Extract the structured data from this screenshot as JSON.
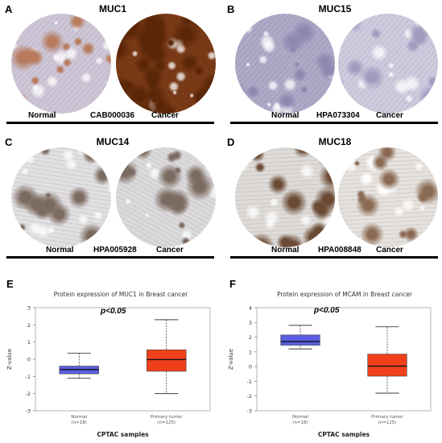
{
  "panels": [
    {
      "letter": "A",
      "title": "MUC1",
      "normal": "Normal",
      "antibody": "CAB000036",
      "cancer": "Cancer",
      "normal_core": {
        "base": "#cfc7d8",
        "stain": "#b77a5c",
        "stain_level": 0.15
      },
      "cancer_core": {
        "base": "#7a3a16",
        "stain": "#5a2608",
        "stain_level": 0.95
      }
    },
    {
      "letter": "B",
      "title": "MUC15",
      "normal": "Normal",
      "antibody": "HPA073304",
      "cancer": "Cancer",
      "normal_core": {
        "base": "#aeaac8",
        "stain": "#8c88b0",
        "stain_level": 0.05
      },
      "cancer_core": {
        "base": "#cfcce0",
        "stain": "#9f9cc0",
        "stain_level": 0.05
      }
    },
    {
      "letter": "C",
      "title": "MUC14",
      "normal": "Normal",
      "antibody": "HPA005928",
      "cancer": "Cancer",
      "normal_core": {
        "base": "#e2e0e2",
        "stain": "#7b6a60",
        "stain_level": 0.15
      },
      "cancer_core": {
        "base": "#dcdadd",
        "stain": "#7b6a60",
        "stain_level": 0.12
      }
    },
    {
      "letter": "D",
      "title": "MUC18",
      "normal": "Normal",
      "antibody": "HPA008848",
      "cancer": "Cancer",
      "normal_core": {
        "base": "#dedbd8",
        "stain": "#6b4a34",
        "stain_level": 0.2
      },
      "cancer_core": {
        "base": "#e6e2de",
        "stain": "#8a6a52",
        "stain_level": 0.1
      }
    }
  ],
  "charts": [
    {
      "letter": "E",
      "title": "Protein expression of MUC1 in Breast cancer",
      "pvalue": "p<0.05",
      "xlabel": "CPTAC samples",
      "ylabel": "Z-value"
    },
    {
      "letter": "F",
      "title": "Protein expression of MCAM in Breast cancer",
      "pvalue": "p<0.05",
      "xlabel": "CPTAC samples",
      "ylabel": "Z-value"
    }
  ],
  "chart_data": [
    {
      "type": "box",
      "title": "Protein expression of MUC1 in Breast cancer",
      "xlabel": "CPTAC samples",
      "ylabel": "Z-value",
      "ylim": [
        -3,
        3
      ],
      "yticks": [
        3,
        2,
        1,
        0,
        -1,
        -2,
        -3
      ],
      "categories": [
        "Normal",
        "Primary tumor"
      ],
      "counts": [
        "(n=18)",
        "(n=125)"
      ],
      "colors": [
        "#5a5ee0",
        "#f0401a"
      ],
      "boxes": [
        {
          "min": -1.1,
          "q1": -0.85,
          "median": -0.6,
          "q3": -0.4,
          "max": 0.35
        },
        {
          "min": -2.0,
          "q1": -0.7,
          "median": -0.02,
          "q3": 0.55,
          "max": 2.3
        }
      ]
    },
    {
      "type": "box",
      "title": "Protein expression of MCAM in Breast cancer",
      "xlabel": "CPTAC samples",
      "ylabel": "Z-value",
      "ylim": [
        -3,
        4
      ],
      "yticks": [
        4,
        3,
        2,
        1,
        0,
        -1,
        -2,
        -3
      ],
      "categories": [
        "Normal",
        "Primary tumor"
      ],
      "counts": [
        "(n=18)",
        "(n=125)"
      ],
      "colors": [
        "#5a5ee0",
        "#f0401a"
      ],
      "boxes": [
        {
          "min": 1.2,
          "q1": 1.45,
          "median": 1.7,
          "q3": 2.15,
          "max": 2.8
        },
        {
          "min": -1.8,
          "q1": -0.65,
          "median": 0.03,
          "q3": 0.85,
          "max": 2.7
        }
      ]
    }
  ]
}
